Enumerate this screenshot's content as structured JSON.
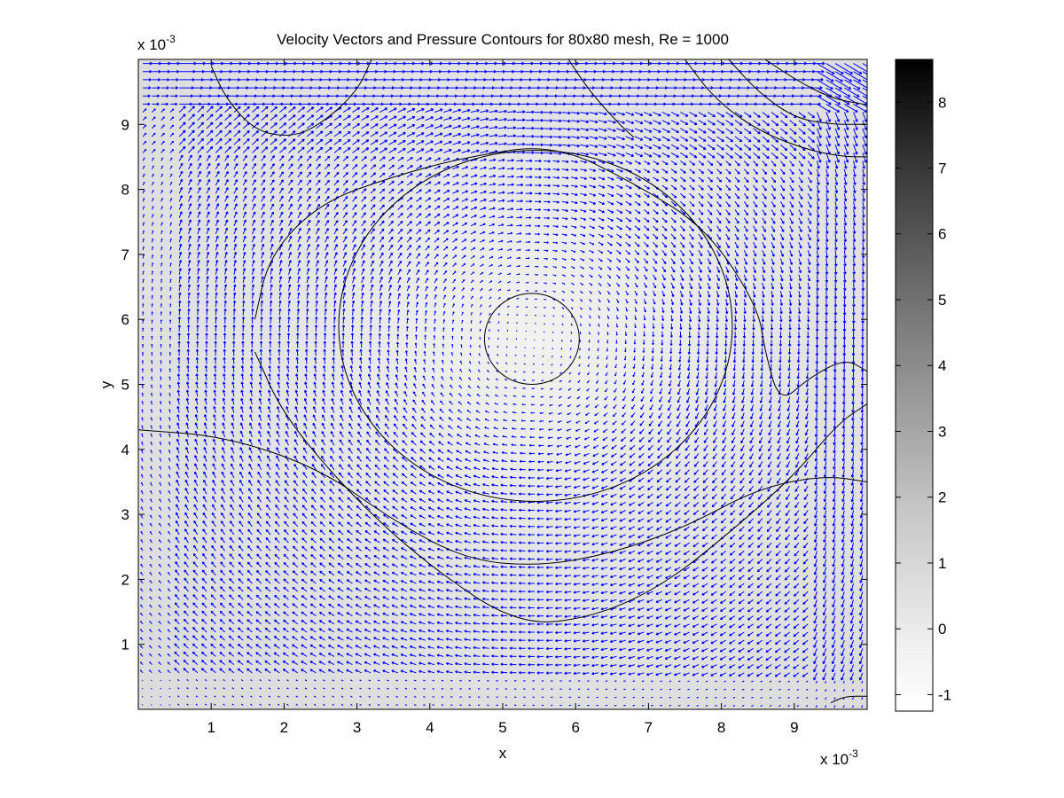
{
  "chart_data": {
    "type": "contour+quiver",
    "title": "Velocity Vectors and Pressure Contours for 80x80 mesh, Re = 1000",
    "xlabel": "x",
    "ylabel": "y",
    "x_multiplier": "x 10",
    "x_exponent": "-3",
    "y_multiplier": "x 10",
    "y_exponent": "-3",
    "xlim": [
      0,
      0.01
    ],
    "ylim": [
      0,
      0.01
    ],
    "xticks": [
      1,
      2,
      3,
      4,
      5,
      6,
      7,
      8,
      9
    ],
    "yticks": [
      1,
      2,
      3,
      4,
      5,
      6,
      7,
      8,
      9
    ],
    "mesh": "80x80",
    "Re": 1000,
    "vortex_center": [
      0.0054,
      0.0057
    ],
    "vector_color": "#0000ff",
    "contour_color": "#000000",
    "background_pressure_color": "#dcdcdc",
    "colorbar": {
      "range": [
        -1.25,
        8.65
      ],
      "ticks": [
        -1,
        0,
        1,
        2,
        3,
        4,
        5,
        6,
        7,
        8
      ],
      "colormap": "gray"
    },
    "pressure_contours": [
      {
        "type": "closed",
        "center": [
          0.0054,
          0.0057
        ],
        "rx": 0.00065,
        "ry": 0.0007
      },
      {
        "type": "closed",
        "center": [
          0.00545,
          0.0059
        ],
        "rx": 0.0027,
        "ry": 0.0027
      },
      {
        "type": "open",
        "points": [
          [
            0,
            0.0043
          ],
          [
            0.0012,
            0.0042
          ],
          [
            0.0025,
            0.0037
          ],
          [
            0.0035,
            0.0029
          ],
          [
            0.0045,
            0.0023
          ],
          [
            0.0055,
            0.0022
          ],
          [
            0.0065,
            0.0024
          ],
          [
            0.0075,
            0.0028
          ],
          [
            0.0085,
            0.0034
          ],
          [
            0.0094,
            0.0036
          ],
          [
            0.01,
            0.0035
          ]
        ]
      },
      {
        "type": "open",
        "points": [
          [
            0.0016,
            0.006
          ],
          [
            0.0018,
            0.007
          ],
          [
            0.0025,
            0.0078
          ],
          [
            0.0035,
            0.0082
          ],
          [
            0.0045,
            0.0085
          ],
          [
            0.0057,
            0.0087
          ],
          [
            0.0068,
            0.0081
          ],
          [
            0.0078,
            0.0074
          ],
          [
            0.0085,
            0.0062
          ],
          [
            0.0086,
            0.0055
          ],
          [
            0.0088,
            0.0047
          ],
          [
            0.0092,
            0.0051
          ],
          [
            0.0097,
            0.0054
          ],
          [
            0.01,
            0.0052
          ]
        ]
      },
      {
        "type": "open",
        "points": [
          [
            0.0016,
            0.0055
          ],
          [
            0.002,
            0.0045
          ],
          [
            0.003,
            0.0032
          ],
          [
            0.004,
            0.0022
          ],
          [
            0.0052,
            0.0013
          ],
          [
            0.0062,
            0.0014
          ],
          [
            0.0072,
            0.0019
          ],
          [
            0.0082,
            0.0028
          ],
          [
            0.009,
            0.0036
          ],
          [
            0.0096,
            0.0044
          ],
          [
            0.01,
            0.0047
          ]
        ]
      },
      {
        "type": "open",
        "points": [
          [
            0.001,
            0.0099
          ],
          [
            0.0012,
            0.0094
          ],
          [
            0.0016,
            0.0089
          ],
          [
            0.0021,
            0.0088
          ],
          [
            0.0025,
            0.009
          ],
          [
            0.003,
            0.0095
          ],
          [
            0.0032,
            0.01
          ]
        ]
      },
      {
        "type": "open",
        "points": [
          [
            0.0059,
            0.01
          ],
          [
            0.0062,
            0.0095
          ],
          [
            0.0066,
            0.009
          ],
          [
            0.0068,
            0.0088
          ]
        ]
      },
      {
        "type": "open",
        "points": [
          [
            0.0075,
            0.01
          ],
          [
            0.0079,
            0.0094
          ],
          [
            0.0085,
            0.0089
          ],
          [
            0.0092,
            0.0086
          ],
          [
            0.0097,
            0.0085
          ],
          [
            0.01,
            0.0085
          ]
        ]
      },
      {
        "type": "open",
        "points": [
          [
            0.0081,
            0.01
          ],
          [
            0.0085,
            0.0095
          ],
          [
            0.009,
            0.0091
          ],
          [
            0.0095,
            0.009
          ],
          [
            0.01,
            0.009
          ]
        ]
      },
      {
        "type": "open",
        "points": [
          [
            0.0086,
            0.01
          ],
          [
            0.009,
            0.0097
          ],
          [
            0.0095,
            0.0094
          ],
          [
            0.01,
            0.0093
          ]
        ]
      },
      {
        "type": "open",
        "points": [
          [
            0.0095,
            0.0001
          ],
          [
            0.0097,
            0.0002
          ],
          [
            0.01,
            0.0002
          ]
        ]
      }
    ]
  }
}
